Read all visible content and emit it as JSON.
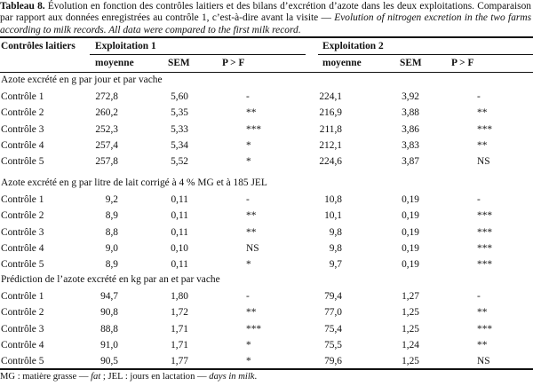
{
  "caption": {
    "label": "Tableau 8.",
    "text_fr": " Évolution en fonction des contrôles laitiers et des bilans d’excrétion d’azote dans les deux exploitations. Comparaison par rapport aux données enregistrées au contrôle 1, c’est-à-dire avant la visite — ",
    "text_en": "Evolution of nitrogen excretion in the two farms according to milk records. All data were compared to the first milk record",
    "end": "."
  },
  "header": {
    "row_label": "Contrôles laitiers",
    "farm1": "Exploitation 1",
    "farm2": "Exploitation 2",
    "sub": [
      "moyenne",
      "SEM",
      "P > F",
      "moyenne",
      "SEM",
      "P > F"
    ]
  },
  "sections": [
    {
      "title": "Azote excrété en g par jour et par vache",
      "rows": [
        {
          "label": "Contrôle 1",
          "m1": "272,8",
          "s1": "5,60",
          "p1": "-",
          "m2": "224,1",
          "s2": "3,92",
          "p2": "-"
        },
        {
          "label": "Contrôle 2",
          "m1": "260,2",
          "s1": "5,35",
          "p1": "**",
          "m2": "216,9",
          "s2": "3,88",
          "p2": "**"
        },
        {
          "label": "Contrôle 3",
          "m1": "252,3",
          "s1": "5,33",
          "p1": "***",
          "m2": "211,8",
          "s2": "3,86",
          "p2": "***"
        },
        {
          "label": "Contrôle 4",
          "m1": "257,4",
          "s1": "5,34",
          "p1": "*",
          "m2": "212,1",
          "s2": "3,83",
          "p2": "**"
        },
        {
          "label": "Contrôle 5",
          "m1": "257,8",
          "s1": "5,52",
          "p1": "*",
          "m2": "224,6",
          "s2": "3,87",
          "p2": "NS"
        }
      ]
    },
    {
      "title": "Azote excrété en g par litre de lait corrigé à 4 % MG et à 185 JEL",
      "rows": [
        {
          "label": "Contrôle 1",
          "m1": "9,2",
          "s1": "0,11",
          "p1": "-",
          "m2": "10,8",
          "s2": "0,19",
          "p2": "-"
        },
        {
          "label": "Contrôle 2",
          "m1": "8,9",
          "s1": "0,11",
          "p1": "**",
          "m2": "10,1",
          "s2": "0,19",
          "p2": "***"
        },
        {
          "label": "Contrôle 3",
          "m1": "8,8",
          "s1": "0,11",
          "p1": "**",
          "m2": "9,8",
          "s2": "0,19",
          "p2": "***"
        },
        {
          "label": "Contrôle 4",
          "m1": "9,0",
          "s1": "0,10",
          "p1": "NS",
          "m2": "9,8",
          "s2": "0,19",
          "p2": "***"
        },
        {
          "label": "Contrôle 5",
          "m1": "8,9",
          "s1": "0,11",
          "p1": "*",
          "m2": "9,7",
          "s2": "0,19",
          "p2": "***"
        }
      ]
    },
    {
      "title": "Prédiction de l’azote excrété en kg par an et par vache",
      "rows": [
        {
          "label": "Contrôle 1",
          "m1": "94,7",
          "s1": "1,80",
          "p1": "-",
          "m2": "79,4",
          "s2": "1,27",
          "p2": "-"
        },
        {
          "label": "Contrôle 2",
          "m1": "90,8",
          "s1": "1,72",
          "p1": "**",
          "m2": "77,0",
          "s2": "1,25",
          "p2": "**"
        },
        {
          "label": "Contrôle 3",
          "m1": "88,8",
          "s1": "1,71",
          "p1": "***",
          "m2": "75,4",
          "s2": "1,25",
          "p2": "***"
        },
        {
          "label": "Contrôle 4",
          "m1": "91,0",
          "s1": "1,71",
          "p1": "*",
          "m2": "75,5",
          "s2": "1,24",
          "p2": "**"
        },
        {
          "label": "Contrôle 5",
          "m1": "90,5",
          "s1": "1,77",
          "p1": "*",
          "m2": "79,6",
          "s2": "1,25",
          "p2": "NS"
        }
      ]
    }
  ],
  "footnote": {
    "p1": "MG : matière grasse — ",
    "e1": "fat",
    "p2": " ; JEL : jours en lactation — ",
    "e2": "days in milk",
    "end": "."
  }
}
